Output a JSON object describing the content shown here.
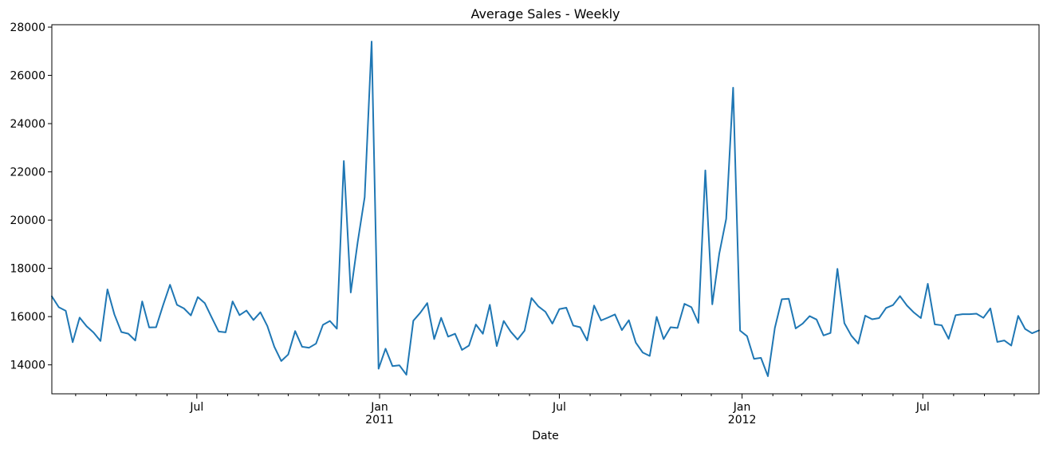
{
  "chart_data": {
    "type": "line",
    "title": "Average Sales - Weekly",
    "xlabel": "Date",
    "ylabel": "",
    "x_start": "2010-02-05",
    "x_interval_days": 7,
    "xlim": [
      "2010-02-05",
      "2012-10-26"
    ],
    "ylim": [
      12800,
      28100
    ],
    "grid": false,
    "line_color": "#1f77b4",
    "y_ticks": [
      14000,
      16000,
      18000,
      20000,
      22000,
      24000,
      26000,
      28000
    ],
    "y_tick_labels": [
      "14000",
      "16000",
      "18000",
      "20000",
      "22000",
      "24000",
      "26000",
      "28000"
    ],
    "x_major_ticks": [
      {
        "date": "2010-07-01",
        "label": "Jul",
        "sublabel": ""
      },
      {
        "date": "2011-01-01",
        "label": "Jan",
        "sublabel": "2011"
      },
      {
        "date": "2011-07-01",
        "label": "Jul",
        "sublabel": ""
      },
      {
        "date": "2012-01-01",
        "label": "Jan",
        "sublabel": "2012"
      },
      {
        "date": "2012-07-01",
        "label": "Jul",
        "sublabel": ""
      }
    ],
    "series": [
      {
        "values": [
          16840,
          16390,
          16240,
          14940,
          15960,
          15600,
          15340,
          14990,
          17130,
          16090,
          15360,
          15290,
          15010,
          16630,
          15550,
          15560,
          16470,
          17320,
          16490,
          16340,
          16050,
          16810,
          16560,
          15960,
          15380,
          15350,
          16630,
          16060,
          16250,
          15860,
          16180,
          15610,
          14750,
          14160,
          14430,
          15400,
          14750,
          14710,
          14880,
          15660,
          15820,
          15500,
          22450,
          17000,
          19100,
          20950,
          27400,
          13840,
          14670,
          13950,
          13980,
          13590,
          15830,
          16160,
          16560,
          15070,
          15950,
          15170,
          15290,
          14620,
          14800,
          15670,
          15290,
          16490,
          14780,
          15820,
          15380,
          15050,
          15420,
          16770,
          16420,
          16200,
          15710,
          16310,
          16370,
          15630,
          15560,
          15010,
          16460,
          15840,
          15960,
          16090,
          15440,
          15850,
          14920,
          14510,
          14370,
          15990,
          15070,
          15560,
          15530,
          16530,
          16390,
          15740,
          22060,
          16510,
          18600,
          20050,
          25490,
          15420,
          15190,
          14250,
          14290,
          13530,
          15530,
          16720,
          16740,
          15510,
          15710,
          16020,
          15880,
          15220,
          15320,
          17980,
          15730,
          15210,
          14880,
          16040,
          15890,
          15940,
          16360,
          16480,
          16850,
          16460,
          16170,
          15940,
          17360,
          15680,
          15640,
          15080,
          16060,
          16100,
          16100,
          16120,
          15950,
          16340,
          14950,
          15010,
          14800,
          16030,
          15490,
          15310,
          15430
        ]
      }
    ]
  }
}
